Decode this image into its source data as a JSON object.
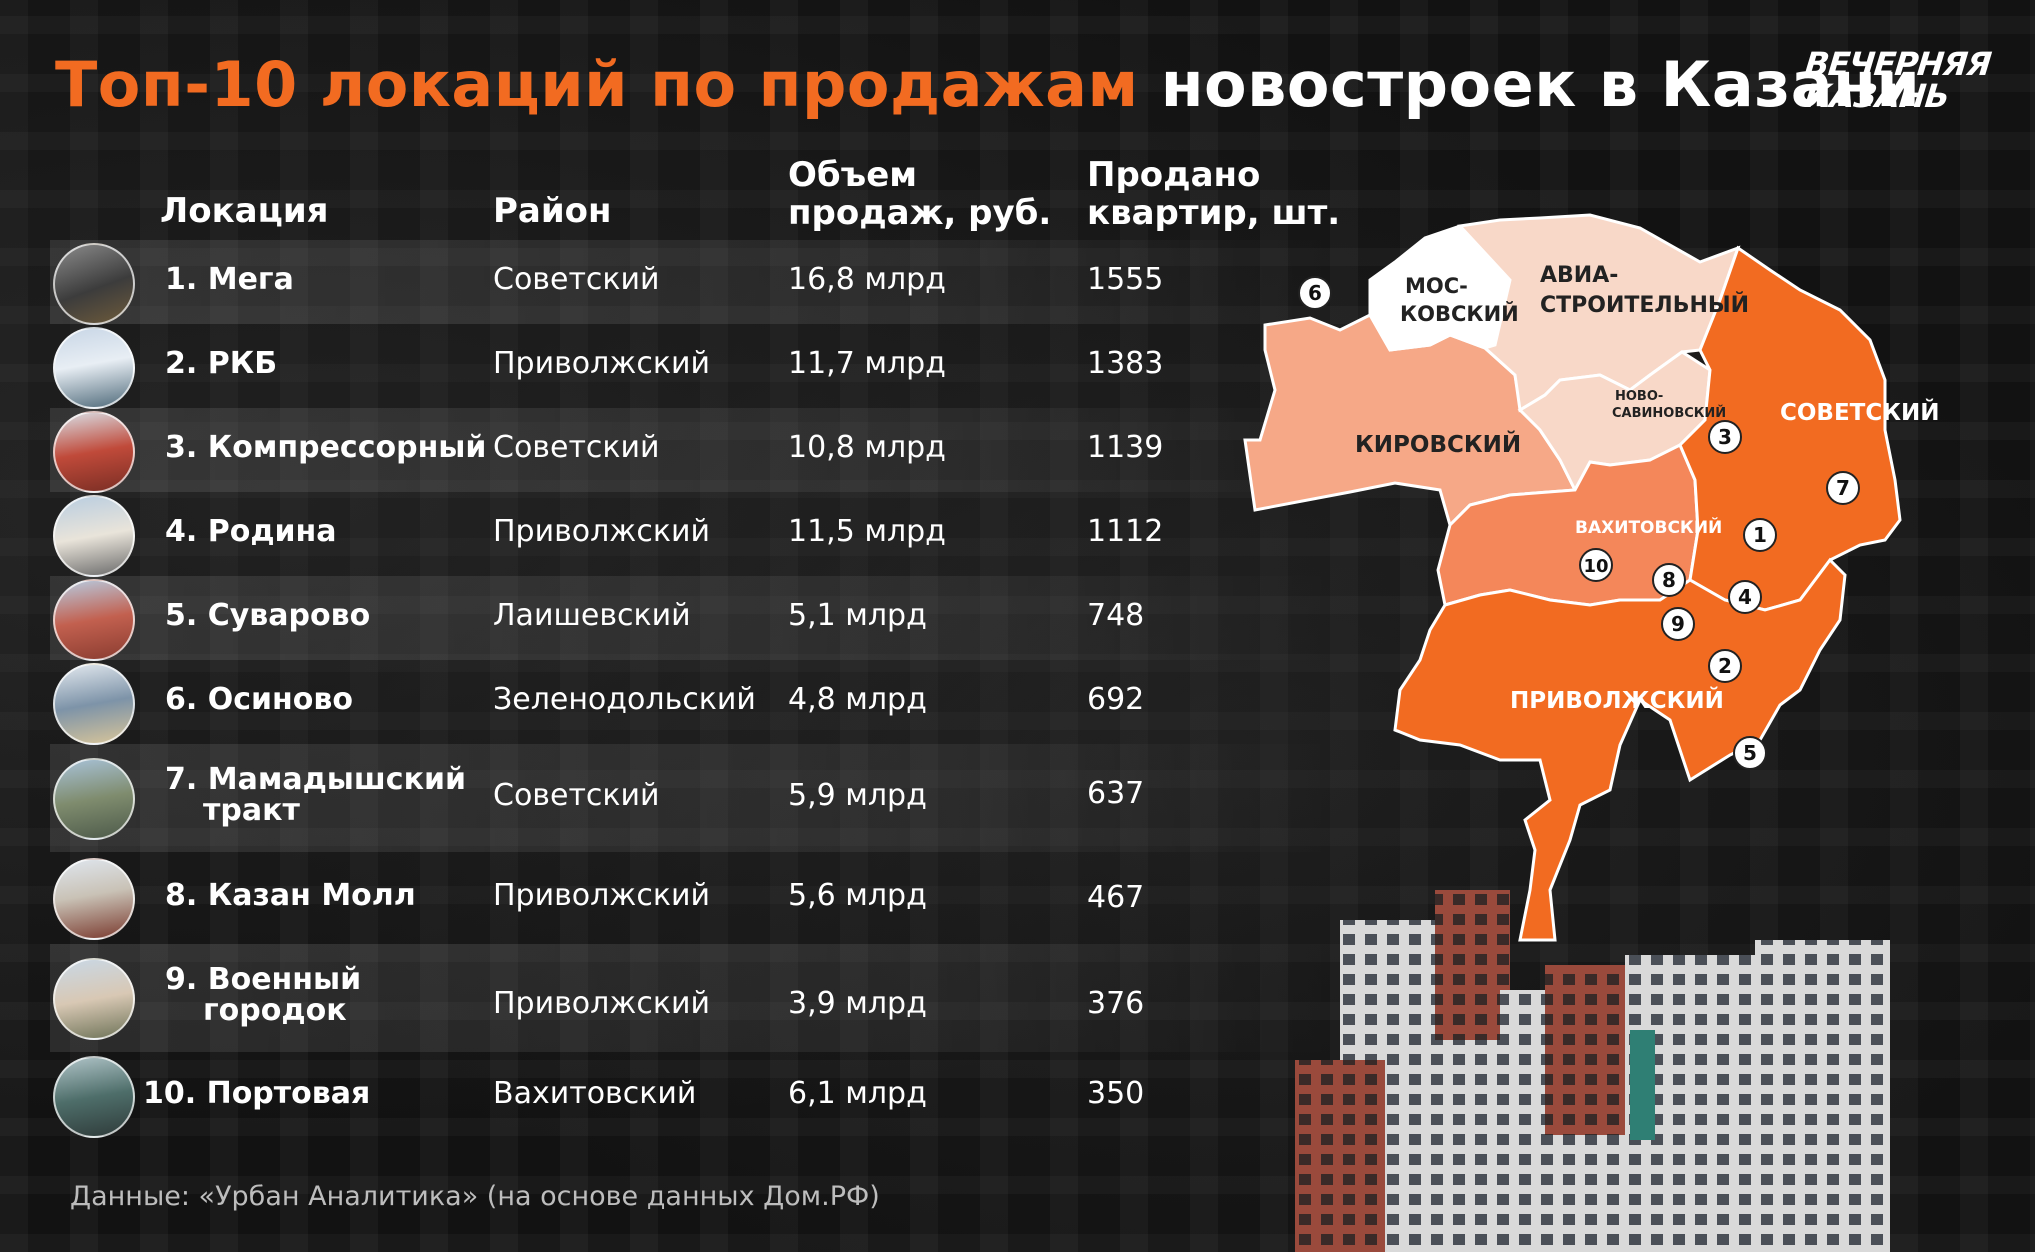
{
  "title": {
    "accent": "Топ-10 локаций по продажам",
    "rest": "новостроек в Казани"
  },
  "logo": {
    "line1": "ВЕЧЕРНЯЯ",
    "line2": "КАЗАНЬ"
  },
  "columns": {
    "location": "Локация",
    "district": "Район",
    "volume": "Объем продаж, руб.",
    "sold": "Продано квартир, шт."
  },
  "rows": [
    {
      "location": "1. Мега",
      "district": "Советский",
      "volume": "16,8 млрд",
      "sold": "1555"
    },
    {
      "location": "2. РКБ",
      "district": "Приволжский",
      "volume": "11,7 млрд",
      "sold": "1383"
    },
    {
      "location": "3. Компрессорный",
      "district": "Советский",
      "volume": "10,8 млрд",
      "sold": "1139"
    },
    {
      "location": "4. Родина",
      "district": "Приволжский",
      "volume": "11,5 млрд",
      "sold": "1112"
    },
    {
      "location": "5. Суварово",
      "district": "Лаишевский",
      "volume": "5,1 млрд",
      "sold": "748"
    },
    {
      "location": "6. Осиново",
      "district": "Зеленодольский",
      "volume": "4,8 млрд",
      "sold": "692"
    },
    {
      "location": "7. Мамадышский тракт",
      "district": "Советский",
      "volume": "5,9 млрд",
      "sold": "637"
    },
    {
      "location": "8. Казан Молл",
      "district": "Приволжский",
      "volume": "5,6 млрд",
      "sold": "467"
    },
    {
      "location": "9. Военный городок",
      "district": "Приволжский",
      "volume": "3,9 млрд",
      "sold": "376"
    },
    {
      "location": "10. Портовая",
      "district": "Вахитовский",
      "volume": "6,1 млрд",
      "sold": "350"
    }
  ],
  "map": {
    "districts": {
      "moskovsky": "МОС-КОВСКИЙ",
      "aviastroitelny": "АВИА-СТРОИТЕЛЬНЫЙ",
      "novosavinovsky": "НОВО-САВИНОВСКИЙ",
      "kirovsky": "КИРОВСКИЙ",
      "sovetsky": "СОВЕТСКИЙ",
      "vakhitovsky": "ВАХИТОВСКИЙ",
      "privolzhsky": "ПРИВОЛЖСКИЙ"
    },
    "markers": [
      "1",
      "2",
      "3",
      "4",
      "5",
      "6",
      "7",
      "8",
      "9",
      "10"
    ],
    "colors": {
      "dark_orange": "#f26b21",
      "mid_orange": "#f4875a",
      "light_orange": "#f6a887",
      "pale": "#f8d8c8",
      "white": "#ffffff"
    }
  },
  "source": "Данные: «Урбан Аналитика» (на основе данных Дом.РФ)"
}
